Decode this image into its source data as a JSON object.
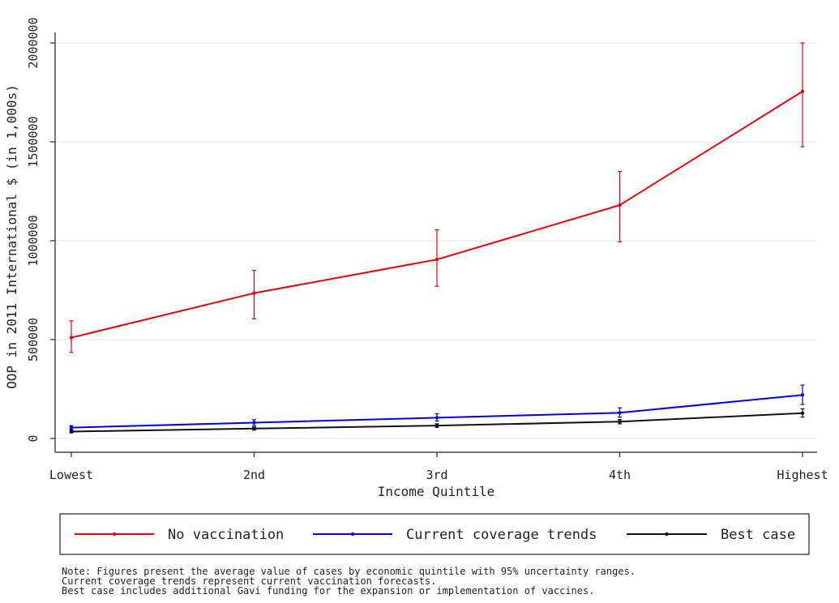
{
  "chart_data": {
    "type": "line",
    "categories": [
      "Lowest",
      "2nd",
      "3rd",
      "4th",
      "Highest"
    ],
    "xlabel": "Income Quintile",
    "ylabel": "OOP in 2011 International $ (in 1,000s)",
    "ylim": [
      0,
      2000000
    ],
    "yticks": [
      "0",
      "500000",
      "1000000",
      "1500000",
      "2000000"
    ],
    "grid": true,
    "legend_position": "bottom",
    "series": [
      {
        "name": "No vaccination",
        "color": "#e8000b",
        "values": [
          510000,
          735000,
          905000,
          1180000,
          1755000
        ],
        "lower": [
          435000,
          605000,
          770000,
          995000,
          1475000
        ],
        "upper": [
          595000,
          850000,
          1055000,
          1350000,
          2000000
        ]
      },
      {
        "name": "Current coverage trends",
        "color": "#0000e8",
        "values": [
          55000,
          80000,
          105000,
          130000,
          220000
        ],
        "lower": [
          45000,
          65000,
          88000,
          108000,
          172000
        ],
        "upper": [
          65000,
          95000,
          125000,
          155000,
          270000
        ]
      },
      {
        "name": "Best case",
        "color": "#111111",
        "values": [
          35000,
          50000,
          65000,
          85000,
          128000
        ],
        "lower": [
          28000,
          42000,
          56000,
          74000,
          108000
        ],
        "upper": [
          42000,
          58000,
          74000,
          96000,
          150000
        ]
      }
    ],
    "notes": [
      "Note: Figures present the average value of cases by economic quintile with 95% uncertainty ranges.",
      "Current coverage trends represent current vaccination forecasts.",
      "Best case includes additional Gavi funding for the expansion or implementation of vaccines."
    ]
  }
}
